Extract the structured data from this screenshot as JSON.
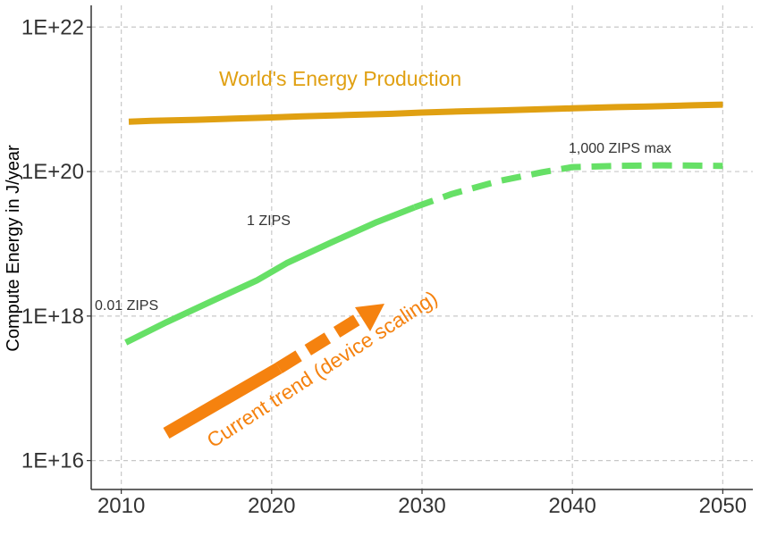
{
  "chart_data": {
    "type": "line",
    "ylabel": "Compute Energy in J/year",
    "xlabel": "",
    "xlim": [
      2008,
      2052
    ],
    "ylim_log10": [
      15.6,
      22.3
    ],
    "y_scale": "log",
    "grid": true,
    "x_ticks": [
      2010,
      2020,
      2030,
      2040,
      2050
    ],
    "x_tick_labels": [
      "2010",
      "2020",
      "2030",
      "2040",
      "2050"
    ],
    "y_ticks_log10": [
      16,
      18,
      20,
      22
    ],
    "y_tick_labels": [
      "1E+16",
      "1E+18",
      "1E+20",
      "1E+22"
    ],
    "series": [
      {
        "color": "#e0a012",
        "style": "solid",
        "x": [
          2010.5,
          2012,
          2015,
          2018,
          2020,
          2022,
          2025,
          2028,
          2030,
          2033,
          2035,
          2038,
          2040,
          2043,
          2045,
          2048,
          2050
        ],
        "y": [
          4.9e+20,
          5.05e+20,
          5.2e+20,
          5.45e+20,
          5.6e+20,
          5.8e+20,
          6.05e+20,
          6.3e+20,
          6.55e+20,
          6.85e+20,
          7e+20,
          7.3e+20,
          7.5e+20,
          7.8e+20,
          7.95e+20,
          8.25e+20,
          8.45e+20
        ]
      },
      {
        "color": "#66e066",
        "style": "solid",
        "x": [
          2010.3,
          2013,
          2016,
          2019,
          2021,
          2024,
          2027,
          2029.5
        ],
        "y": [
          4.3e+17,
          8.2e+17,
          1.6e+18,
          3.1e+18,
          5.4e+18,
          1.05e+19,
          2e+19,
          3.2e+19
        ]
      },
      {
        "color": "#66e066",
        "style": "dashed",
        "x": [
          2029.5,
          2032,
          2035,
          2038,
          2040,
          2043,
          2046,
          2050
        ],
        "y": [
          3.2e+19,
          4.9e+19,
          7.3e+19,
          9.8e+19,
          1.15e+20,
          1.2e+20,
          1.22e+20,
          1.2e+20
        ]
      }
    ],
    "annotations": {
      "world": {
        "text": "World's Energy Production",
        "color": "#e0a012"
      },
      "one_zips": {
        "text": "1 ZIPS"
      },
      "zips_001": {
        "text": "0.01 ZIPS"
      },
      "zips_max": {
        "text": "1,000 ZIPS max"
      },
      "trend": {
        "text": "Current trend (device scaling)",
        "color": "#f5820f"
      }
    }
  }
}
